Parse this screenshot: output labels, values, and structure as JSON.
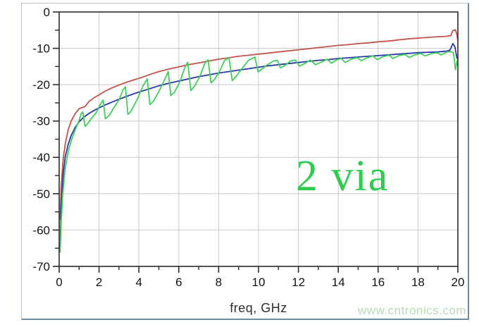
{
  "chart_data": {
    "type": "line",
    "title": "",
    "xlabel": "freq, GHz",
    "ylabel": "",
    "xlim": [
      0,
      20
    ],
    "ylim": [
      -70,
      0
    ],
    "grid": "major",
    "legend": "none",
    "x_major_ticks": [
      0,
      2,
      4,
      6,
      8,
      10,
      12,
      14,
      16,
      18,
      20
    ],
    "x_minor_ticks": [
      1,
      3,
      5,
      7,
      9,
      11,
      13,
      15,
      17,
      19
    ],
    "x_tick_labels": [
      "0",
      "2",
      "4",
      "6",
      "8",
      "10",
      "12",
      "14",
      "16",
      "18",
      "20"
    ],
    "y_major_ticks": [
      0,
      -10,
      -20,
      -30,
      -40,
      -50,
      -60,
      -70
    ],
    "y_minor_ticks": [
      -5,
      -15,
      -25,
      -35,
      -45,
      -55,
      -65
    ],
    "y_tick_labels": [
      "0",
      "-10",
      "-20",
      "-30",
      "-40",
      "-50",
      "-60",
      "-70"
    ],
    "annotation": {
      "text": "2 via",
      "color": "#2ecc4f"
    },
    "colors": {
      "axis": "#2b2b2b",
      "grid": "#c9c9c9",
      "tick_label": "#141414"
    },
    "series": [
      {
        "name": "red-trace",
        "color": "#c4524e",
        "points": [
          [
            0.05,
            -57
          ],
          [
            0.1,
            -48
          ],
          [
            0.2,
            -40.5
          ],
          [
            0.3,
            -36.5
          ],
          [
            0.45,
            -32.5
          ],
          [
            0.6,
            -30
          ],
          [
            0.8,
            -28
          ],
          [
            1.0,
            -26.6
          ],
          [
            1.15,
            -26.3
          ],
          [
            1.3,
            -26.0
          ],
          [
            1.5,
            -24.6
          ],
          [
            1.75,
            -23.6
          ],
          [
            2.0,
            -22.8
          ],
          [
            2.3,
            -21.8
          ],
          [
            2.6,
            -21.0
          ],
          [
            3.0,
            -20.1
          ],
          [
            3.4,
            -19.3
          ],
          [
            3.8,
            -18.6
          ],
          [
            4.2,
            -17.9
          ],
          [
            4.6,
            -17.1
          ],
          [
            5.0,
            -16.4
          ],
          [
            5.5,
            -15.7
          ],
          [
            6.0,
            -15.1
          ],
          [
            6.5,
            -14.5
          ],
          [
            7.0,
            -14.0
          ],
          [
            7.5,
            -13.5
          ],
          [
            8.0,
            -13.0
          ],
          [
            8.5,
            -12.6
          ],
          [
            9.0,
            -12.2
          ],
          [
            9.5,
            -11.9
          ],
          [
            10.0,
            -11.6
          ],
          [
            10.5,
            -11.3
          ],
          [
            11.0,
            -11.0
          ],
          [
            11.5,
            -10.7
          ],
          [
            12.0,
            -10.4
          ],
          [
            12.5,
            -10.1
          ],
          [
            13.0,
            -9.8
          ],
          [
            13.5,
            -9.5
          ],
          [
            14.0,
            -9.2
          ],
          [
            14.5,
            -9.0
          ],
          [
            15.0,
            -8.7
          ],
          [
            15.5,
            -8.5
          ],
          [
            16.0,
            -8.2
          ],
          [
            16.5,
            -8.0
          ],
          [
            17.0,
            -7.7
          ],
          [
            17.5,
            -7.4
          ],
          [
            18.0,
            -7.2
          ],
          [
            18.5,
            -7.0
          ],
          [
            19.0,
            -6.8
          ],
          [
            19.4,
            -6.7
          ],
          [
            19.65,
            -6.5
          ],
          [
            19.75,
            -5.1
          ],
          [
            19.88,
            -4.9
          ],
          [
            19.95,
            -6.2
          ],
          [
            20.0,
            -7.9
          ]
        ]
      },
      {
        "name": "blue-trace",
        "color": "#2838a6",
        "points": [
          [
            0.05,
            -64.5
          ],
          [
            0.1,
            -54
          ],
          [
            0.2,
            -44.5
          ],
          [
            0.3,
            -40
          ],
          [
            0.45,
            -36.5
          ],
          [
            0.6,
            -34
          ],
          [
            0.8,
            -31.8
          ],
          [
            1.0,
            -30.2
          ],
          [
            1.25,
            -28.9
          ],
          [
            1.5,
            -27.9
          ],
          [
            1.75,
            -27.1
          ],
          [
            2.0,
            -26.4
          ],
          [
            2.3,
            -25.6
          ],
          [
            2.6,
            -24.9
          ],
          [
            3.0,
            -24.0
          ],
          [
            3.4,
            -23.2
          ],
          [
            3.8,
            -22.4
          ],
          [
            4.2,
            -21.7
          ],
          [
            4.6,
            -21.0
          ],
          [
            5.0,
            -20.3
          ],
          [
            5.5,
            -19.6
          ],
          [
            6.0,
            -19.0
          ],
          [
            6.5,
            -18.4
          ],
          [
            7.0,
            -17.8
          ],
          [
            7.5,
            -17.3
          ],
          [
            8.0,
            -16.8
          ],
          [
            8.5,
            -16.4
          ],
          [
            9.0,
            -16.0
          ],
          [
            9.5,
            -15.6
          ],
          [
            10.0,
            -15.2
          ],
          [
            10.5,
            -14.8
          ],
          [
            11.0,
            -14.5
          ],
          [
            11.5,
            -14.2
          ],
          [
            12.0,
            -13.9
          ],
          [
            12.5,
            -13.6
          ],
          [
            13.0,
            -13.3
          ],
          [
            13.5,
            -13.1
          ],
          [
            14.0,
            -12.8
          ],
          [
            14.5,
            -12.6
          ],
          [
            15.0,
            -12.4
          ],
          [
            15.5,
            -12.2
          ],
          [
            16.0,
            -12.0
          ],
          [
            16.5,
            -11.8
          ],
          [
            17.0,
            -11.6
          ],
          [
            17.5,
            -11.4
          ],
          [
            18.0,
            -11.2
          ],
          [
            18.5,
            -11.1
          ],
          [
            19.0,
            -11.0
          ],
          [
            19.4,
            -10.8
          ],
          [
            19.6,
            -10.5
          ],
          [
            19.75,
            -8.7
          ],
          [
            19.85,
            -9.6
          ],
          [
            19.95,
            -12.6
          ],
          [
            20.0,
            -13.0
          ]
        ]
      },
      {
        "name": "green-trace",
        "color": "#3ecf58",
        "points": [
          [
            0.05,
            -66
          ],
          [
            0.1,
            -58
          ],
          [
            0.18,
            -50
          ],
          [
            0.3,
            -43
          ],
          [
            0.45,
            -38.5
          ],
          [
            0.6,
            -35.5
          ],
          [
            0.8,
            -32.5
          ],
          [
            1.0,
            -29.8
          ],
          [
            1.1,
            -28.0
          ],
          [
            1.18,
            -27.5
          ],
          [
            1.3,
            -31.5
          ],
          [
            1.45,
            -30.6
          ],
          [
            1.65,
            -29.0
          ],
          [
            1.85,
            -27.8
          ],
          [
            2.05,
            -25.6
          ],
          [
            2.2,
            -24.2
          ],
          [
            2.32,
            -29.4
          ],
          [
            2.5,
            -28.5
          ],
          [
            2.75,
            -26.3
          ],
          [
            3.0,
            -24.2
          ],
          [
            3.2,
            -21.4
          ],
          [
            3.32,
            -20.6
          ],
          [
            3.45,
            -28.2
          ],
          [
            3.6,
            -27.3
          ],
          [
            3.9,
            -24.2
          ],
          [
            4.2,
            -20.4
          ],
          [
            4.42,
            -18.4
          ],
          [
            4.55,
            -25.5
          ],
          [
            4.72,
            -24.6
          ],
          [
            5.0,
            -21.9
          ],
          [
            5.3,
            -18.5
          ],
          [
            5.47,
            -16.4
          ],
          [
            5.6,
            -23.0
          ],
          [
            5.78,
            -22.1
          ],
          [
            6.05,
            -19.3
          ],
          [
            6.3,
            -15.3
          ],
          [
            6.45,
            -13.8
          ],
          [
            6.6,
            -21.6
          ],
          [
            6.78,
            -20.5
          ],
          [
            7.05,
            -17.8
          ],
          [
            7.3,
            -14.2
          ],
          [
            7.47,
            -13.1
          ],
          [
            7.62,
            -19.5
          ],
          [
            7.8,
            -18.5
          ],
          [
            8.05,
            -16.3
          ],
          [
            8.3,
            -13.3
          ],
          [
            8.52,
            -12.6
          ],
          [
            8.68,
            -18.9
          ],
          [
            8.85,
            -17.9
          ],
          [
            9.15,
            -15.7
          ],
          [
            9.5,
            -13.3
          ],
          [
            9.82,
            -12.4
          ],
          [
            9.98,
            -16.5
          ],
          [
            10.15,
            -15.8
          ],
          [
            10.45,
            -14.5
          ],
          [
            10.75,
            -13.5
          ],
          [
            10.95,
            -13.3
          ],
          [
            11.1,
            -15.4
          ],
          [
            11.35,
            -14.6
          ],
          [
            11.6,
            -13.5
          ],
          [
            11.85,
            -13.2
          ],
          [
            12.05,
            -14.9
          ],
          [
            12.35,
            -14.1
          ],
          [
            12.6,
            -13.2
          ],
          [
            12.85,
            -14.5
          ],
          [
            13.15,
            -13.8
          ],
          [
            13.45,
            -13.0
          ],
          [
            13.65,
            -14.1
          ],
          [
            13.95,
            -13.1
          ],
          [
            14.15,
            -12.8
          ],
          [
            14.35,
            -13.9
          ],
          [
            14.65,
            -13.0
          ],
          [
            14.95,
            -12.5
          ],
          [
            15.15,
            -13.4
          ],
          [
            15.45,
            -12.6
          ],
          [
            15.75,
            -12.1
          ],
          [
            15.95,
            -13.1
          ],
          [
            16.25,
            -12.3
          ],
          [
            16.55,
            -11.9
          ],
          [
            16.75,
            -12.8
          ],
          [
            17.05,
            -12.0
          ],
          [
            17.35,
            -11.7
          ],
          [
            17.55,
            -12.5
          ],
          [
            17.85,
            -11.8
          ],
          [
            18.15,
            -11.4
          ],
          [
            18.35,
            -12.1
          ],
          [
            18.65,
            -11.5
          ],
          [
            18.95,
            -11.2
          ],
          [
            19.15,
            -11.8
          ],
          [
            19.45,
            -11.0
          ],
          [
            19.65,
            -10.9
          ],
          [
            19.78,
            -11.3
          ],
          [
            19.88,
            -15.9
          ],
          [
            19.96,
            -13.4
          ],
          [
            20.0,
            -14.6
          ]
        ]
      }
    ]
  },
  "watermark": {
    "text": "www.cntronics.com",
    "color": "#b7dbb7"
  }
}
